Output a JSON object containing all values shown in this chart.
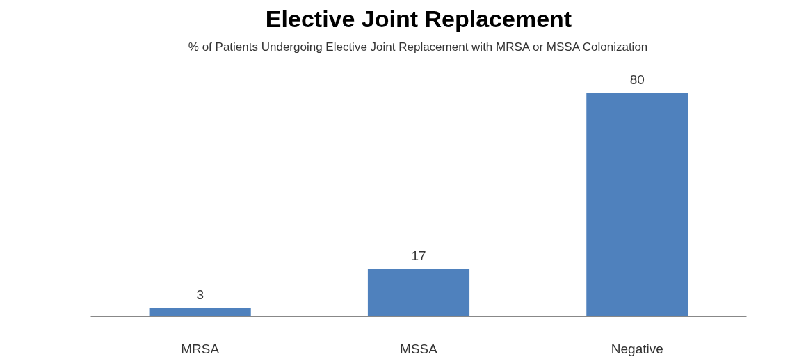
{
  "chart_data": {
    "type": "bar",
    "title": "Elective Joint Replacement",
    "subtitle": "% of Patients Undergoing Elective Joint Replacement with MRSA or MSSA Colonization",
    "categories": [
      "MRSA",
      "MSSA",
      "Negative"
    ],
    "values": [
      3,
      17,
      80
    ],
    "color": "#4f81bd",
    "data_labels": true,
    "grid": false
  }
}
